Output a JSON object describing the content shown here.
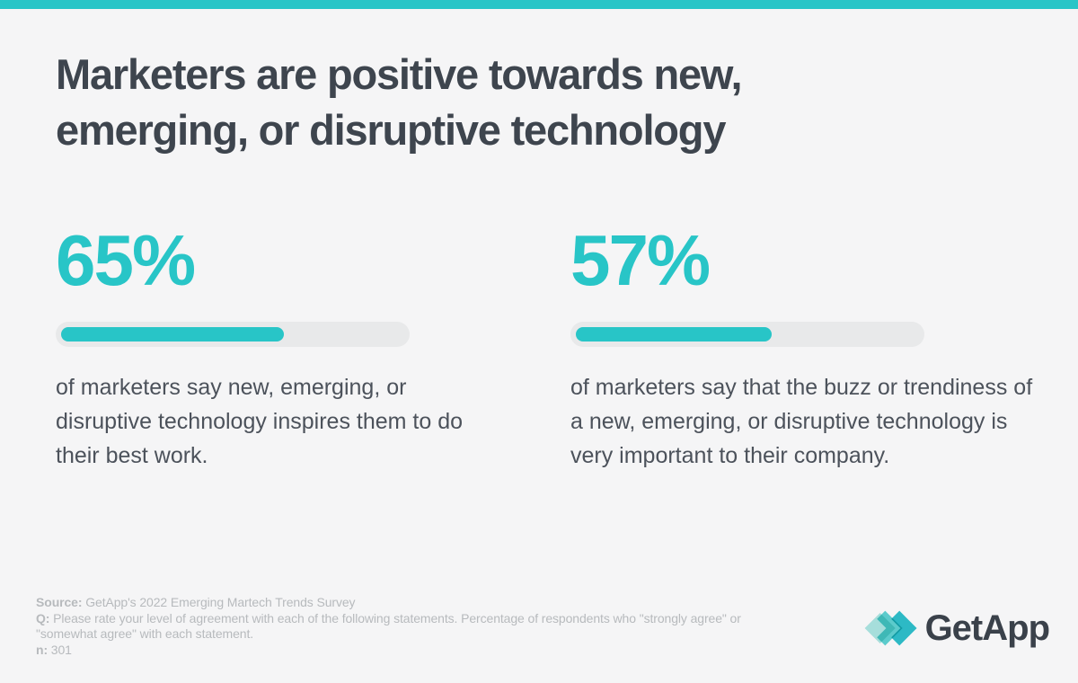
{
  "page": {
    "background": "#f5f5f6",
    "accent_color": "#28c5c7",
    "title_color": "#3e454e",
    "body_text_color": "#4c525b",
    "footer_text_color": "#b7babd",
    "bar_track_color": "#e8e9ea"
  },
  "title": {
    "line1": "Marketers are positive towards new,",
    "line2": "emerging, or disruptive technology"
  },
  "stats": [
    {
      "value": "65%",
      "percent": 65,
      "description": "of marketers say new, emerging, or disruptive technology inspires them to do their best work."
    },
    {
      "value": "57%",
      "percent": 57,
      "description": "of marketers say that the buzz or trendiness of a new, emerging, or disruptive technology is very important to their company."
    }
  ],
  "footer": {
    "source_label": "Source:",
    "source_text": " GetApp's 2022 Emerging Martech Trends Survey",
    "question_label": "Q:",
    "question_text": " Please rate your level of agreement with each of the following statements. Percentage of respondents who \"strongly agree\" or \"somewhat agree\" with each statement.",
    "n_label": "n:",
    "n_text": " 301"
  },
  "logo": {
    "wordmark": "GetApp",
    "icon": "getapp-arrows-icon",
    "icon_colors": [
      "#a9e6e2",
      "#4ed0d0",
      "#1cbcc8"
    ]
  },
  "chart_data": {
    "type": "bar",
    "orientation": "horizontal",
    "title": "Marketers are positive towards new, emerging, or disruptive technology",
    "categories": [
      "of marketers say new, emerging, or disruptive technology inspires them to do their best work.",
      "of marketers say that the buzz or trendiness of a new, emerging, or disruptive technology is very important to their company."
    ],
    "values": [
      65,
      57
    ],
    "unit": "%",
    "xlim": [
      0,
      100
    ],
    "grid": false,
    "legend": false,
    "annotations": [
      "65%",
      "57%"
    ]
  }
}
